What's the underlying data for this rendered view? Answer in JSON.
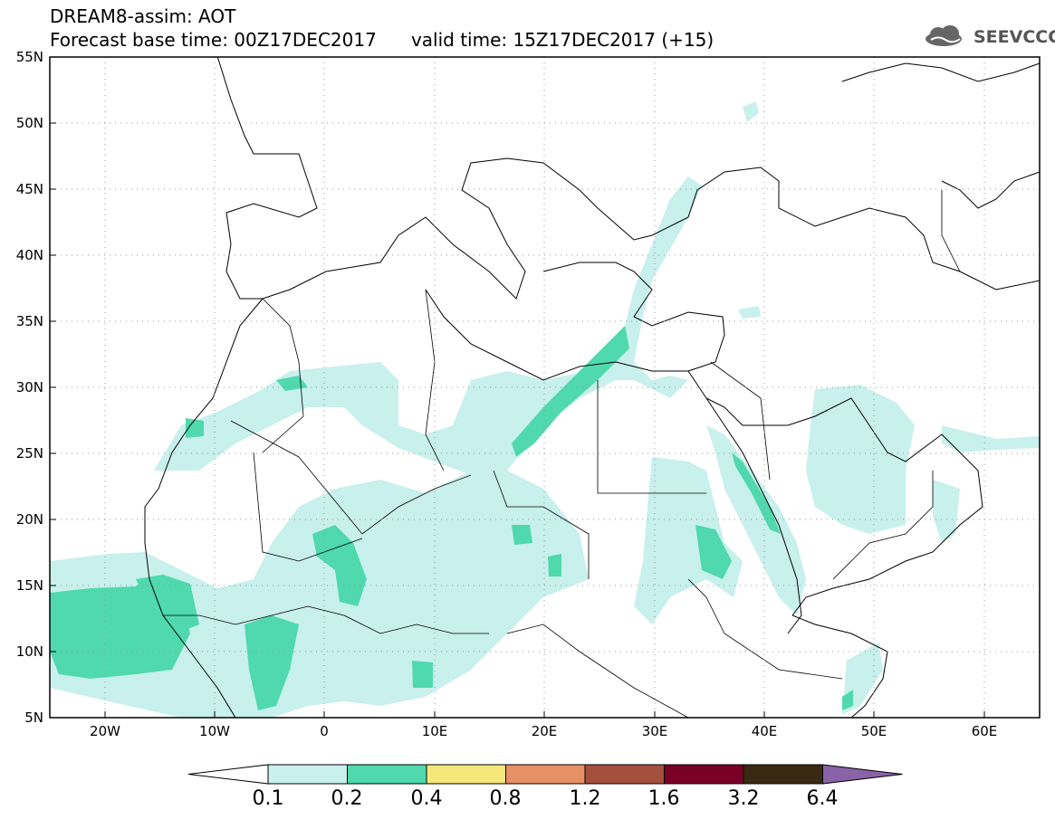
{
  "header": {
    "title_line1": "DREAM8-assim: AOT",
    "title_line2": "Forecast base time: 00Z17DEC2017      valid time: 15Z17DEC2017 (+15)",
    "logo_text": "SEEVCCC"
  },
  "map": {
    "projection": "lat-lon",
    "lon_range": [
      -25,
      65
    ],
    "lat_range": [
      5,
      55
    ],
    "lat_labels": [
      "55N",
      "50N",
      "45N",
      "40N",
      "35N",
      "30N",
      "25N",
      "20N",
      "15N",
      "10N",
      "5N"
    ],
    "lon_labels": [
      "20W",
      "10W",
      "0",
      "10E",
      "20E",
      "30E",
      "40E",
      "50E",
      "60E"
    ],
    "grid": "dotted",
    "field": "AOT"
  },
  "colorbar": {
    "levels": [
      "0.1",
      "0.2",
      "0.4",
      "0.8",
      "1.2",
      "1.6",
      "3.2",
      "6.4"
    ],
    "colors": [
      "#ffffff",
      "#c8f0ec",
      "#4fd9ad",
      "#f5e77a",
      "#e89065",
      "#a4503e",
      "#7a0028",
      "#3a2a14",
      "#8a62a6"
    ]
  }
}
